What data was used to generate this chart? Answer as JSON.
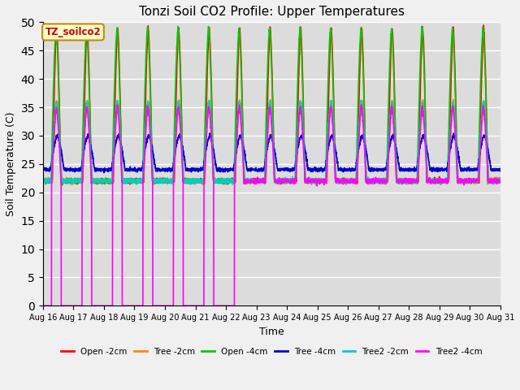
{
  "title": "Tonzi Soil CO2 Profile: Upper Temperatures",
  "xlabel": "Time",
  "ylabel": "Soil Temperature (C)",
  "ylim": [
    0,
    50
  ],
  "background_color": "#dcdcdc",
  "grid_color": "#ffffff",
  "annotation_text": "TZ_soilco2",
  "annotation_bg": "#ffffcc",
  "annotation_border": "#cc8800",
  "annotation_text_color": "#cc0000",
  "series": [
    {
      "label": "Open -2cm",
      "color": "#ff0000",
      "lw": 1.2
    },
    {
      "label": "Tree -2cm",
      "color": "#ff8800",
      "lw": 1.2
    },
    {
      "label": "Open -4cm",
      "color": "#00cc00",
      "lw": 1.2
    },
    {
      "label": "Tree -4cm",
      "color": "#0000cc",
      "lw": 1.2
    },
    {
      "label": "Tree2 -2cm",
      "color": "#00cccc",
      "lw": 1.2
    },
    {
      "label": "Tree2 -4cm",
      "color": "#ff00ff",
      "lw": 1.2
    }
  ],
  "tick_dates": [
    "Aug 16",
    "Aug 17",
    "Aug 18",
    "Aug 19",
    "Aug 20",
    "Aug 21",
    "Aug 22",
    "Aug 23",
    "Aug 24",
    "Aug 25",
    "Aug 26",
    "Aug 27",
    "Aug 28",
    "Aug 29",
    "Aug 30",
    "Aug 31"
  ],
  "yticks": [
    0,
    5,
    10,
    15,
    20,
    25,
    30,
    35,
    40,
    45,
    50
  ],
  "n_days": 15,
  "pts_per_day": 240,
  "magenta_cutoff_day": 6.5
}
